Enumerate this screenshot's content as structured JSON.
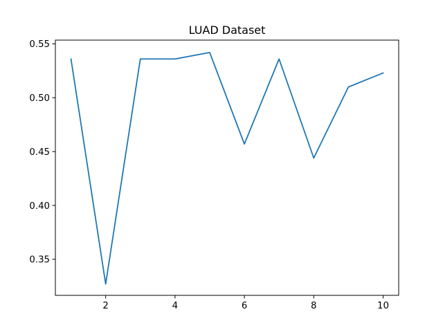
{
  "chart_data": {
    "type": "line",
    "title": "LUAD Dataset",
    "xlabel": "",
    "ylabel": "",
    "xlim": [
      0.55,
      10.45
    ],
    "ylim": [
      0.3165,
      0.5535
    ],
    "x_ticks": [
      2,
      4,
      6,
      8,
      10
    ],
    "x_tick_labels": [
      "2",
      "4",
      "6",
      "8",
      "10"
    ],
    "y_ticks": [
      0.35,
      0.4,
      0.45,
      0.5,
      0.55
    ],
    "y_tick_labels": [
      "0.35",
      "0.40",
      "0.45",
      "0.50",
      "0.55"
    ],
    "grid": false,
    "series": [
      {
        "color": "#1f77b4",
        "x": [
          1,
          2,
          3,
          4,
          5,
          6,
          7,
          8,
          9,
          10
        ],
        "y": [
          0.536,
          0.327,
          0.536,
          0.536,
          0.542,
          0.457,
          0.536,
          0.444,
          0.51,
          0.523
        ]
      }
    ]
  }
}
